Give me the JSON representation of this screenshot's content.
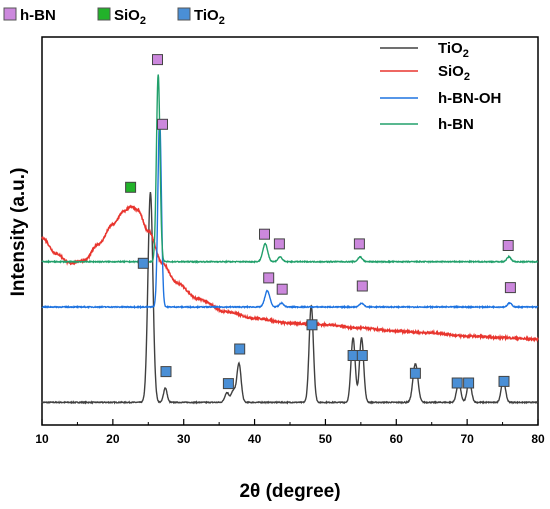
{
  "chart_data": {
    "type": "line",
    "xlabel": "2θ (degree)",
    "ylabel": "Intensity (a.u.)",
    "xlim": [
      10,
      80
    ],
    "x_ticks": [
      "10",
      "20",
      "30",
      "40",
      "50",
      "60",
      "70",
      "80"
    ],
    "y_ticks_shown": false,
    "grid": false,
    "legend_position": "top-right",
    "marker_key": [
      {
        "label_main": "h-BN",
        "label_sub": "",
        "color": "#cc88dd"
      },
      {
        "label_main": "SiO",
        "label_sub": "2",
        "color": "#22b22a"
      },
      {
        "label_main": "TiO",
        "label_sub": "2",
        "color": "#4a8fd6"
      }
    ],
    "series": [
      {
        "name_main": "TiO",
        "name_sub": "2",
        "color": "#404040",
        "baseline": 0.07,
        "peaks": [
          [
            25.3,
            0.65,
            0.35
          ],
          [
            27.4,
            0.045,
            0.25
          ],
          [
            36.1,
            0.03,
            0.3
          ],
          [
            37.0,
            0.035,
            0.3
          ],
          [
            37.8,
            0.12,
            0.3
          ],
          [
            48.0,
            0.3,
            0.3
          ],
          [
            53.9,
            0.2,
            0.3
          ],
          [
            55.1,
            0.2,
            0.3
          ],
          [
            62.7,
            0.12,
            0.35
          ],
          [
            68.8,
            0.06,
            0.3
          ],
          [
            70.3,
            0.065,
            0.3
          ],
          [
            75.1,
            0.07,
            0.3
          ]
        ]
      },
      {
        "name_main": "SiO",
        "name_sub": "2",
        "color": "#e8352e",
        "shape": [
          [
            10,
            0.58
          ],
          [
            12,
            0.53
          ],
          [
            14,
            0.5
          ],
          [
            16,
            0.51
          ],
          [
            18,
            0.56
          ],
          [
            20,
            0.62
          ],
          [
            21.5,
            0.66
          ],
          [
            22.5,
            0.675
          ],
          [
            23.5,
            0.665
          ],
          [
            25,
            0.6
          ],
          [
            27,
            0.5
          ],
          [
            29,
            0.44
          ],
          [
            32,
            0.39
          ],
          [
            36,
            0.35
          ],
          [
            40,
            0.33
          ],
          [
            45,
            0.315
          ],
          [
            50,
            0.31
          ],
          [
            55,
            0.3
          ],
          [
            60,
            0.29
          ],
          [
            65,
            0.285
          ],
          [
            70,
            0.275
          ],
          [
            75,
            0.27
          ],
          [
            80,
            0.265
          ]
        ]
      },
      {
        "name_main": "h-BN-OH",
        "name_sub": "",
        "color": "#1e73e0",
        "baseline": 0.365,
        "peaks": [
          [
            26.6,
            0.58,
            0.25
          ],
          [
            41.8,
            0.05,
            0.35
          ],
          [
            43.8,
            0.012,
            0.3
          ],
          [
            55.1,
            0.012,
            0.3
          ],
          [
            76.0,
            0.012,
            0.3
          ]
        ]
      },
      {
        "name_main": "h-BN",
        "name_sub": "",
        "color": "#22a06b",
        "baseline": 0.505,
        "peaks": [
          [
            26.4,
            0.58,
            0.25
          ],
          [
            41.5,
            0.055,
            0.35
          ],
          [
            43.6,
            0.015,
            0.3
          ],
          [
            54.9,
            0.015,
            0.3
          ],
          [
            75.9,
            0.015,
            0.3
          ]
        ]
      }
    ],
    "markers": [
      {
        "type": "h-BN",
        "x": 26.3,
        "y": 1.13
      },
      {
        "type": "h-BN",
        "x": 27.0,
        "y": 0.93
      },
      {
        "type": "h-BN",
        "x": 41.4,
        "y": 0.59
      },
      {
        "type": "h-BN",
        "x": 43.5,
        "y": 0.56
      },
      {
        "type": "h-BN",
        "x": 54.8,
        "y": 0.56
      },
      {
        "type": "h-BN",
        "x": 75.8,
        "y": 0.555
      },
      {
        "type": "h-BN",
        "x": 42.0,
        "y": 0.455
      },
      {
        "type": "h-BN",
        "x": 43.9,
        "y": 0.42
      },
      {
        "type": "h-BN",
        "x": 55.2,
        "y": 0.43
      },
      {
        "type": "h-BN",
        "x": 76.1,
        "y": 0.425
      },
      {
        "type": "SiO2",
        "x": 22.5,
        "y": 0.735
      },
      {
        "type": "TiO2",
        "x": 24.3,
        "y": 0.5
      },
      {
        "type": "TiO2",
        "x": 27.5,
        "y": 0.165
      },
      {
        "type": "TiO2",
        "x": 36.3,
        "y": 0.128
      },
      {
        "type": "TiO2",
        "x": 37.9,
        "y": 0.235
      },
      {
        "type": "TiO2",
        "x": 48.1,
        "y": 0.31
      },
      {
        "type": "TiO2",
        "x": 53.9,
        "y": 0.215
      },
      {
        "type": "TiO2",
        "x": 55.2,
        "y": 0.215
      },
      {
        "type": "TiO2",
        "x": 62.7,
        "y": 0.16
      },
      {
        "type": "TiO2",
        "x": 68.6,
        "y": 0.13
      },
      {
        "type": "TiO2",
        "x": 70.2,
        "y": 0.13
      },
      {
        "type": "TiO2",
        "x": 75.2,
        "y": 0.135
      }
    ]
  }
}
